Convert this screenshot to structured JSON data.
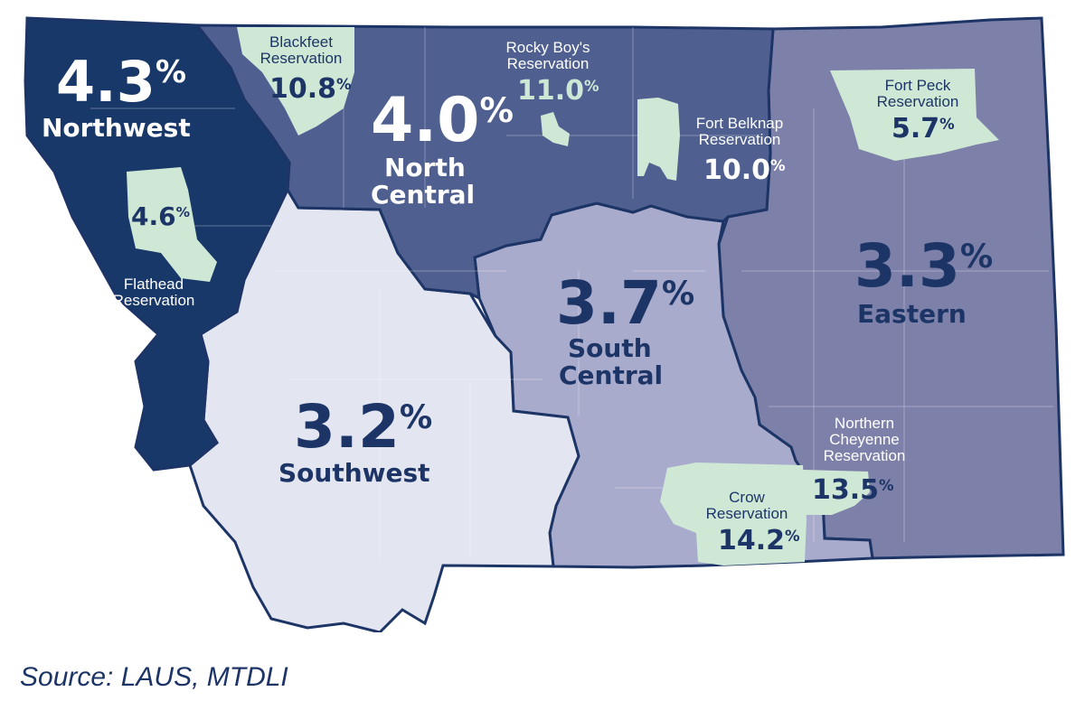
{
  "regions": [
    {
      "id": "northwest",
      "name": "Northwest",
      "rate": "4.3",
      "color": "#173869"
    },
    {
      "id": "north-central",
      "name_line1": "North",
      "name_line2": "Central",
      "rate": "4.0",
      "color": "#4f5f8f"
    },
    {
      "id": "southwest",
      "name": "Southwest",
      "rate": "3.2",
      "color": "#e3e5f0"
    },
    {
      "id": "south-central",
      "name_line1": "South",
      "name_line2": "Central",
      "rate": "3.7",
      "color": "#a9abcc"
    },
    {
      "id": "eastern",
      "name": "Eastern",
      "rate": "3.3",
      "color": "#7d80a8"
    }
  ],
  "reservations": {
    "blackfeet": {
      "line1": "Blackfeet",
      "line2": "Reservation",
      "rate": "10.8"
    },
    "rocky_boys": {
      "line1": "Rocky Boy's",
      "line2": "Reservation",
      "rate": "11.0"
    },
    "fort_belknap": {
      "line1": "Fort Belknap",
      "line2": "Reservation",
      "rate": "10.0"
    },
    "fort_peck": {
      "line1": "Fort Peck",
      "line2": "Reservation",
      "rate": "5.7"
    },
    "flathead": {
      "line1": "Flathead",
      "line2": "Reservation",
      "rate": "4.6"
    },
    "crow": {
      "line1": "Crow",
      "line2": "Reservation",
      "rate": "14.2"
    },
    "northern_cheyenne": {
      "line1": "Northern",
      "line2": "Cheyenne",
      "line3": "Reservation",
      "rate": "13.5"
    }
  },
  "reservation_color": "#cfe8d6",
  "percent_symbol": "%",
  "source": "Source: LAUS, MTDLI"
}
